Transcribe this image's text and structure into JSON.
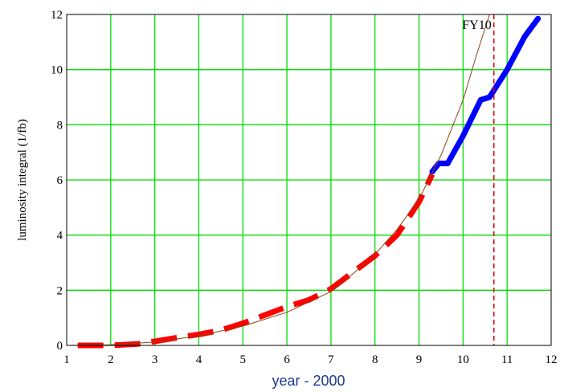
{
  "chart_data": {
    "type": "line",
    "title": "",
    "xlabel": "year - 2000",
    "ylabel": "luminosity integral (1/fb)",
    "xlim": [
      1,
      12
    ],
    "ylim": [
      0,
      12
    ],
    "xticks": [
      "1",
      "2",
      "3",
      "4",
      "5",
      "6",
      "7",
      "8",
      "9",
      "10",
      "11",
      "12"
    ],
    "yticks": [
      "0",
      "2",
      "4",
      "6",
      "8",
      "10",
      "12"
    ],
    "grid": true,
    "grid_color": "#00dd00",
    "annotations": [
      {
        "text": "FY10",
        "x": 10.7,
        "type": "vertical-dashed-line",
        "color": "#e00000"
      }
    ],
    "series": [
      {
        "style": "thick-dashed",
        "color": "#ff0000",
        "points": [
          [
            1.25,
            0.0
          ],
          [
            2.0,
            0.0
          ],
          [
            2.6,
            0.05
          ],
          [
            3.0,
            0.15
          ],
          [
            3.5,
            0.28
          ],
          [
            4.0,
            0.4
          ],
          [
            4.5,
            0.55
          ],
          [
            5.0,
            0.8
          ],
          [
            5.5,
            1.1
          ],
          [
            6.0,
            1.4
          ],
          [
            6.5,
            1.65
          ],
          [
            7.0,
            2.05
          ],
          [
            7.5,
            2.65
          ],
          [
            8.0,
            3.25
          ],
          [
            8.5,
            4.0
          ],
          [
            9.0,
            5.2
          ],
          [
            9.3,
            6.2
          ]
        ]
      },
      {
        "style": "thick-solid",
        "color": "#0000ff",
        "points": [
          [
            9.3,
            6.3
          ],
          [
            9.45,
            6.6
          ],
          [
            9.65,
            6.6
          ],
          [
            10.0,
            7.6
          ],
          [
            10.4,
            8.9
          ],
          [
            10.6,
            9.0
          ],
          [
            11.0,
            10.0
          ],
          [
            11.4,
            11.2
          ],
          [
            11.7,
            11.85
          ]
        ]
      },
      {
        "style": "thin-solid",
        "color": "#8b4513",
        "points": [
          [
            1.0,
            0.0
          ],
          [
            2.0,
            0.02
          ],
          [
            3.0,
            0.12
          ],
          [
            4.0,
            0.35
          ],
          [
            5.0,
            0.7
          ],
          [
            6.0,
            1.2
          ],
          [
            7.0,
            1.95
          ],
          [
            7.5,
            2.6
          ],
          [
            8.0,
            3.3
          ],
          [
            8.5,
            4.2
          ],
          [
            9.0,
            5.3
          ],
          [
            9.5,
            6.9
          ],
          [
            10.0,
            8.9
          ],
          [
            10.3,
            10.5
          ],
          [
            10.6,
            12.0
          ]
        ]
      }
    ]
  }
}
